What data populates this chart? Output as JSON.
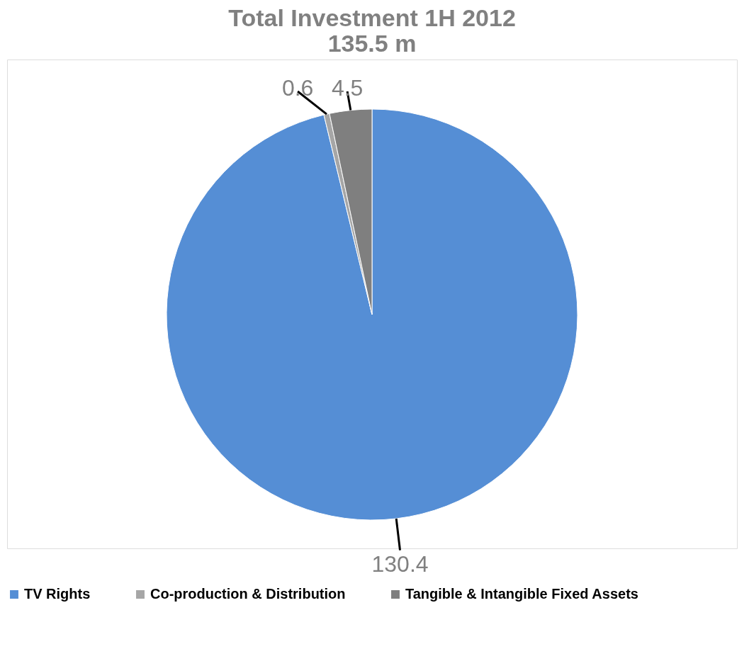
{
  "chart_data": {
    "type": "pie",
    "title": [
      "Total Investment 1H 2012",
      "135.5 m"
    ],
    "categories": [
      "TV Rights",
      "Co-production & Distribution",
      "Tangible & Intangible Fixed Assets"
    ],
    "values": [
      130.4,
      0.6,
      4.5
    ],
    "colors": [
      "#558ed5",
      "#a6a6a6",
      "#7f7f7f"
    ],
    "data_labels": true,
    "legend": "bottom"
  }
}
